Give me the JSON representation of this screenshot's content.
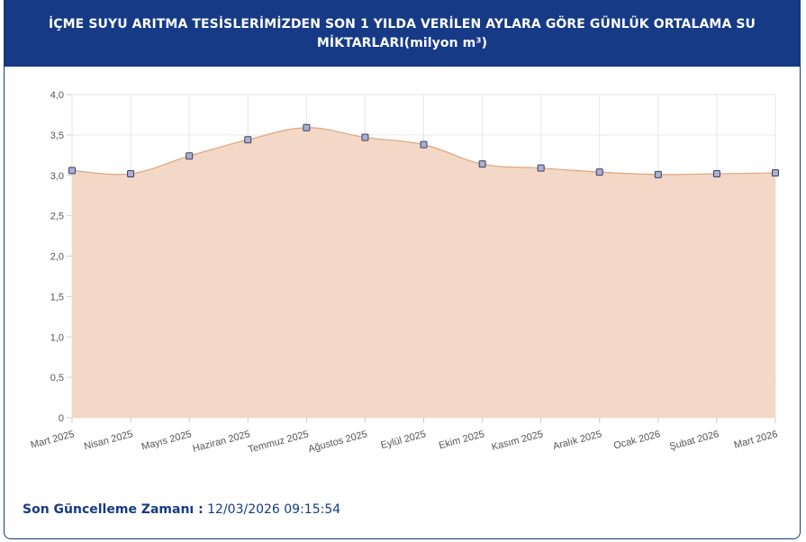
{
  "header": {
    "title": "İÇME SUYU ARITMA TESİSLERİMİZDEN SON 1 YILDA VERİLEN AYLARA GÖRE GÜNLÜK ORTALAMA SU\nMİKTARLARI(milyon m³)"
  },
  "footer": {
    "label": "Son Güncelleme Zamanı :",
    "value": " 12/03/2026 09:15:54"
  },
  "colors": {
    "header_bg": "#163a86",
    "area_fill": "#f2d6c4",
    "area_line": "#e0a47c",
    "marker_fill": "#a9b0d4",
    "marker_stroke": "#3b3f5c"
  },
  "chart_data": {
    "type": "area",
    "categories": [
      "Mart 2025",
      "Nisan 2025",
      "Mayıs 2025",
      "Haziran 2025",
      "Temmuz 2025",
      "Ağustos 2025",
      "Eylül 2025",
      "Ekim 2025",
      "Kasım 2025",
      "Aralık 2025",
      "Ocak 2026",
      "Şubat 2026",
      "Mart 2026"
    ],
    "values": [
      3.06,
      3.02,
      3.24,
      3.44,
      3.59,
      3.47,
      3.38,
      3.14,
      3.09,
      3.04,
      3.01,
      3.02,
      3.03
    ],
    "yticks": [
      "0",
      "0,5",
      "1,0",
      "1,5",
      "2,0",
      "2,5",
      "3,0",
      "3,5",
      "4,0"
    ],
    "ylim": [
      0,
      4
    ],
    "grid": true,
    "legend": "none"
  }
}
